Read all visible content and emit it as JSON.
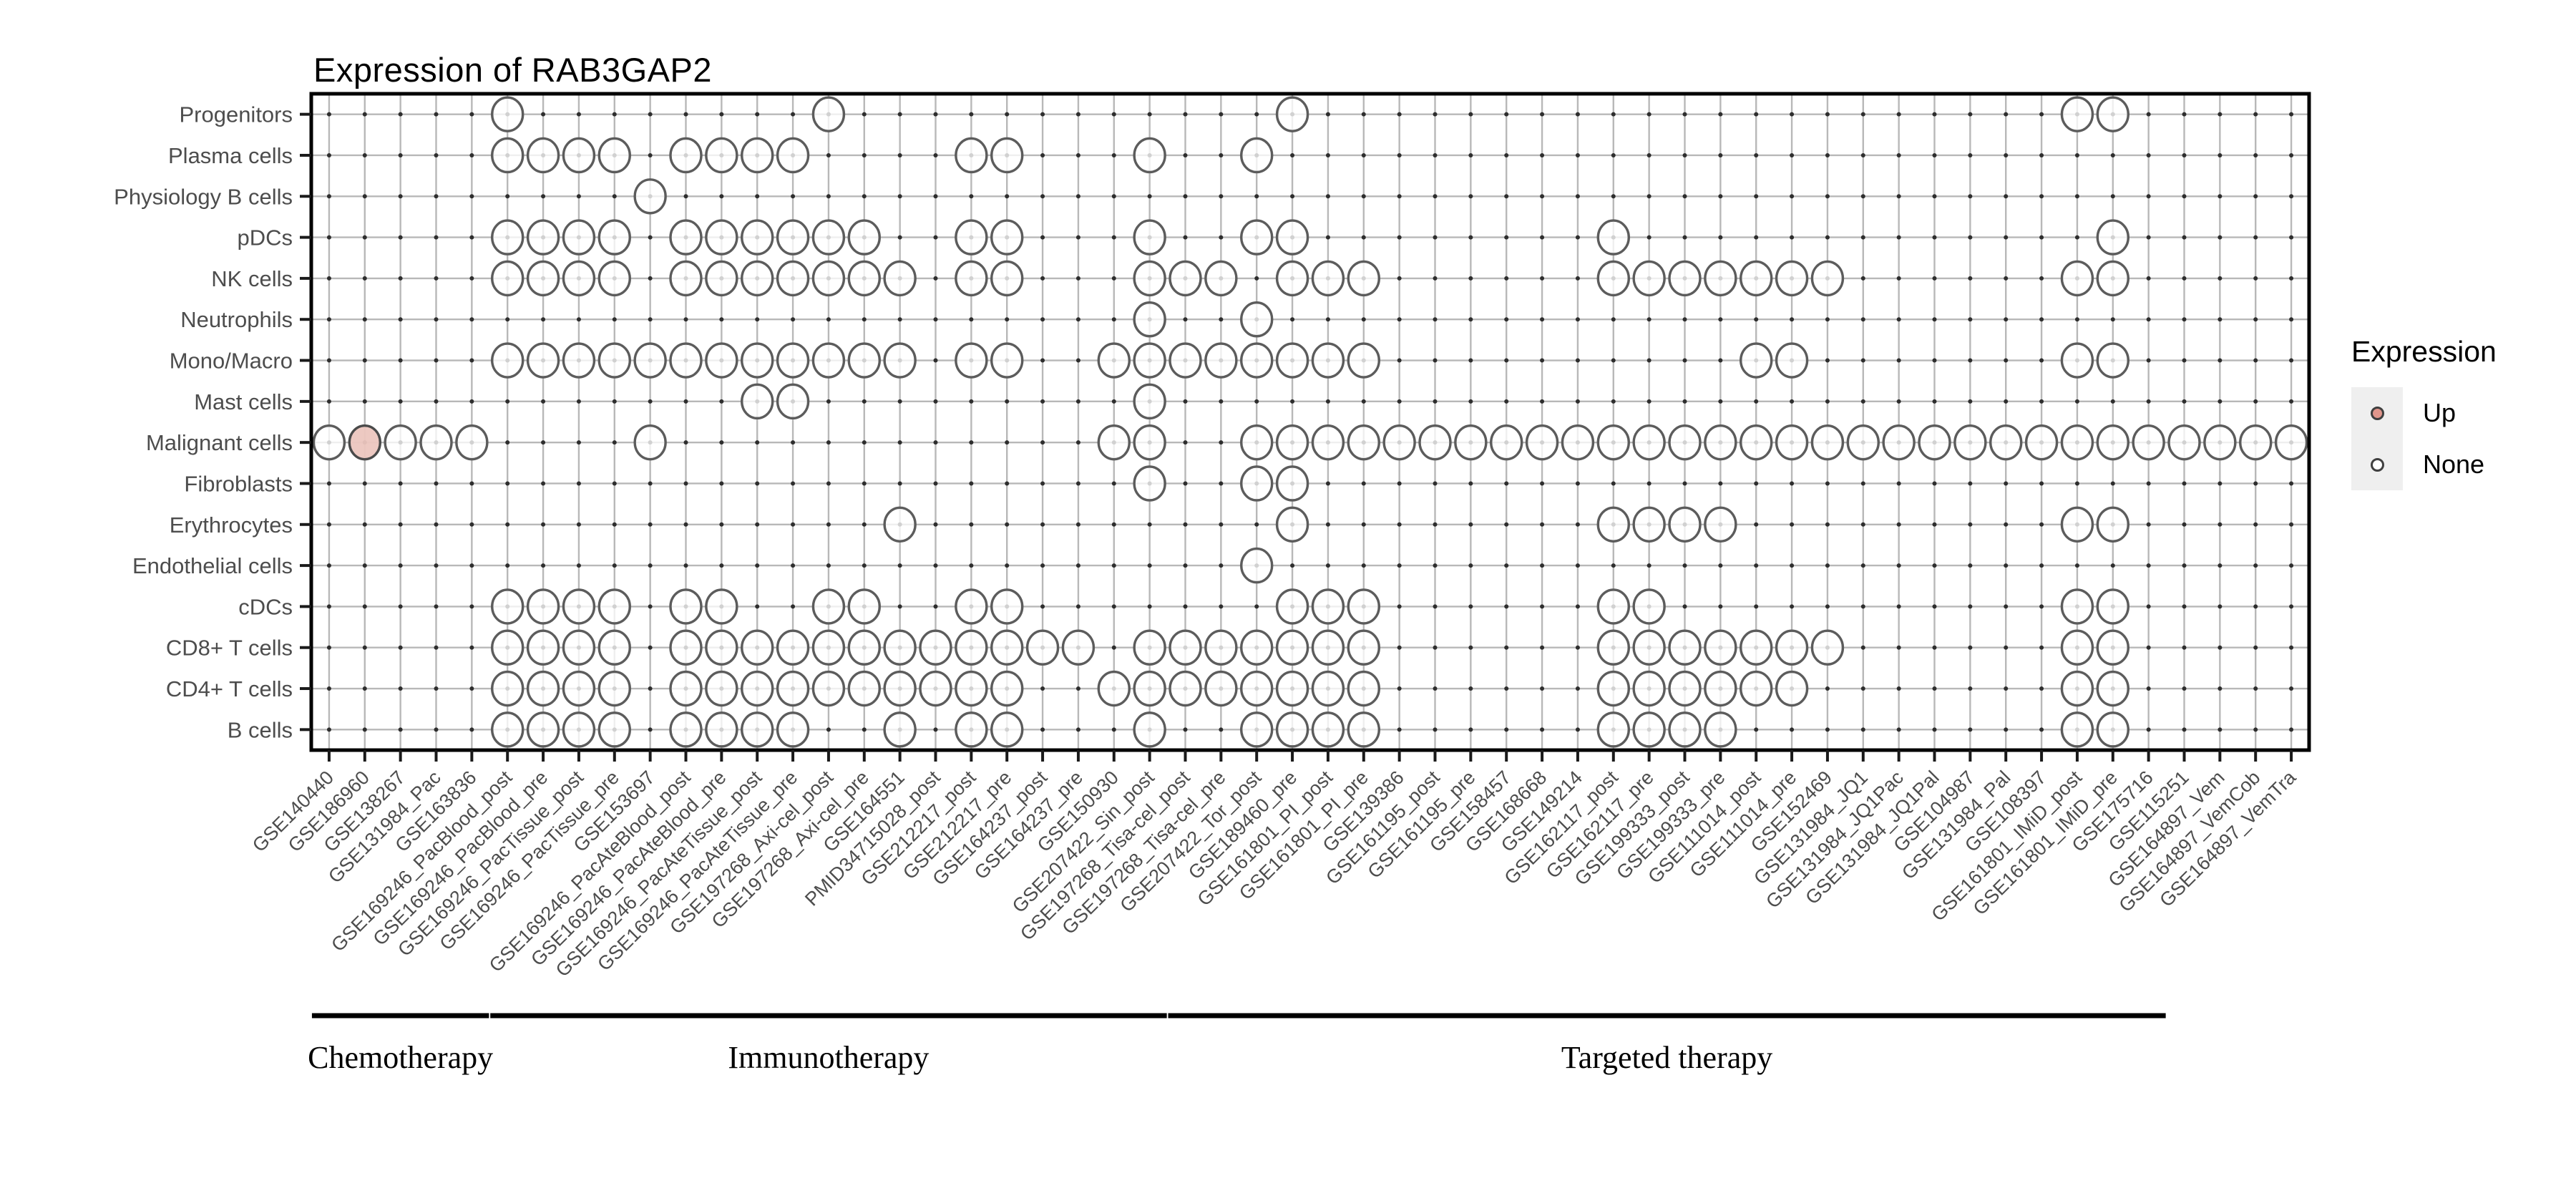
{
  "title": "Expression of RAB3GAP2",
  "legend": {
    "title": "Expression",
    "items": [
      {
        "label": "Up",
        "key": "up"
      },
      {
        "label": "None",
        "key": "none"
      }
    ]
  },
  "colors": {
    "up_fill": "#ECC6BF",
    "up_legend_fill": "#E1968C",
    "circle_stroke": "#5C5C5C",
    "grid": "#B8B8B8",
    "grid_point": "#2E2E2E",
    "axis_text": "#4D4D4D",
    "title_text": "#000000",
    "legend_key_bg": "#EFEFEF",
    "border": "#000000"
  },
  "chart_data": {
    "type": "scatter",
    "title": "Expression of RAB3GAP2",
    "grid": "on",
    "legend_position": "right",
    "legend_title": "Expression",
    "legend_entries": [
      "Up",
      "None"
    ],
    "x_categories": [
      "GSE140440",
      "GSE186960",
      "GSE138267",
      "GSE131984_Pac",
      "GSE163836",
      "GSE169246_PacBlood_post",
      "GSE169246_PacBlood_pre",
      "GSE169246_PacTissue_post",
      "GSE169246_PacTissue_pre",
      "GSE153697",
      "GSE169246_PacAteBlood_post",
      "GSE169246_PacAteBlood_pre",
      "GSE169246_PacAteTissue_post",
      "GSE169246_PacAteTissue_pre",
      "GSE197268_Axi-cel_post",
      "GSE197268_Axi-cel_pre",
      "GSE164551",
      "PMID34715028_post",
      "GSE212217_post",
      "GSE212217_pre",
      "GSE164237_post",
      "GSE164237_pre",
      "GSE150930",
      "GSE207422_Sin_post",
      "GSE197268_Tisa-cel_post",
      "GSE197268_Tisa-cel_pre",
      "GSE207422_Tor_post",
      "GSE189460_pre",
      "GSE161801_PI_post",
      "GSE161801_PI_pre",
      "GSE139386",
      "GSE161195_post",
      "GSE161195_pre",
      "GSE158457",
      "GSE168668",
      "GSE149214",
      "GSE162117_post",
      "GSE162117_pre",
      "GSE199333_post",
      "GSE199333_pre",
      "GSE111014_post",
      "GSE111014_pre",
      "GSE152469",
      "GSE131984_JQ1",
      "GSE131984_JQ1Pac",
      "GSE131984_JQ1Pal",
      "GSE104987",
      "GSE131984_Pal",
      "GSE108397",
      "GSE161801_IMiD_post",
      "GSE161801_IMiD_pre",
      "GSE175716",
      "GSE115251",
      "GSE164897_Vem",
      "GSE164897_VemCob",
      "GSE164897_VemTra"
    ],
    "y_categories": [
      "Progenitors",
      "Plasma cells",
      "Physiology B cells",
      "pDCs",
      "NK cells",
      "Neutrophils",
      "Mono/Macro",
      "Mast cells",
      "Malignant cells",
      "Fibroblasts",
      "Erythrocytes",
      "Endothelial cells",
      "cDCs",
      "CD8+ T cells",
      "CD4+ T cells",
      "B cells"
    ],
    "cells": {
      "Progenitors": [
        6,
        15,
        28,
        50,
        51
      ],
      "Plasma cells": [
        6,
        7,
        8,
        9,
        11,
        12,
        13,
        14,
        19,
        20,
        24,
        27
      ],
      "Physiology B cells": [
        10
      ],
      "pDCs": [
        6,
        7,
        8,
        9,
        11,
        12,
        13,
        14,
        15,
        16,
        19,
        20,
        24,
        27,
        28,
        37,
        51
      ],
      "NK cells": [
        6,
        7,
        8,
        9,
        11,
        12,
        13,
        14,
        15,
        16,
        17,
        19,
        20,
        24,
        25,
        26,
        28,
        29,
        30,
        37,
        38,
        39,
        40,
        41,
        42,
        43,
        50,
        51
      ],
      "Neutrophils": [
        24,
        27
      ],
      "Mono/Macro": [
        6,
        7,
        8,
        9,
        10,
        11,
        12,
        13,
        14,
        15,
        16,
        17,
        19,
        20,
        23,
        24,
        25,
        26,
        27,
        28,
        29,
        30,
        41,
        42,
        50,
        51
      ],
      "Mast cells": [
        13,
        14,
        24
      ],
      "Malignant cells": [
        1,
        2,
        3,
        4,
        5,
        10,
        23,
        24,
        27,
        28,
        29,
        30,
        31,
        32,
        33,
        34,
        35,
        36,
        37,
        38,
        39,
        40,
        41,
        42,
        43,
        44,
        45,
        46,
        47,
        48,
        49,
        50,
        51,
        52,
        53,
        54,
        55,
        56
      ],
      "Fibroblasts": [
        24,
        27,
        28
      ],
      "Erythrocytes": [
        17,
        28,
        37,
        38,
        39,
        40,
        50,
        51
      ],
      "Endothelial cells": [
        27
      ],
      "cDCs": [
        6,
        7,
        8,
        9,
        11,
        12,
        15,
        16,
        19,
        20,
        28,
        29,
        30,
        37,
        38,
        50,
        51
      ],
      "CD8+ T cells": [
        6,
        7,
        8,
        9,
        11,
        12,
        13,
        14,
        15,
        16,
        17,
        18,
        19,
        20,
        21,
        22,
        24,
        25,
        26,
        27,
        28,
        29,
        30,
        37,
        38,
        39,
        40,
        41,
        42,
        43,
        50,
        51
      ],
      "CD4+ T cells": [
        6,
        7,
        8,
        9,
        11,
        12,
        13,
        14,
        15,
        16,
        17,
        18,
        19,
        20,
        23,
        24,
        25,
        26,
        27,
        28,
        29,
        30,
        37,
        38,
        39,
        40,
        41,
        42,
        50,
        51
      ],
      "B cells": [
        6,
        7,
        8,
        9,
        11,
        12,
        13,
        14,
        17,
        19,
        20,
        24,
        27,
        28,
        29,
        30,
        37,
        38,
        39,
        40,
        50,
        51
      ]
    },
    "up_cells": [
      {
        "row": "Malignant cells",
        "col": 2
      }
    ],
    "groups": [
      {
        "label": "Chemotherapy",
        "from_col": 1,
        "to_col": 5
      },
      {
        "label": "Immunotherapy",
        "from_col": 6,
        "to_col": 24
      },
      {
        "label": "Targeted therapy",
        "from_col": 25,
        "to_col": 52
      }
    ]
  }
}
